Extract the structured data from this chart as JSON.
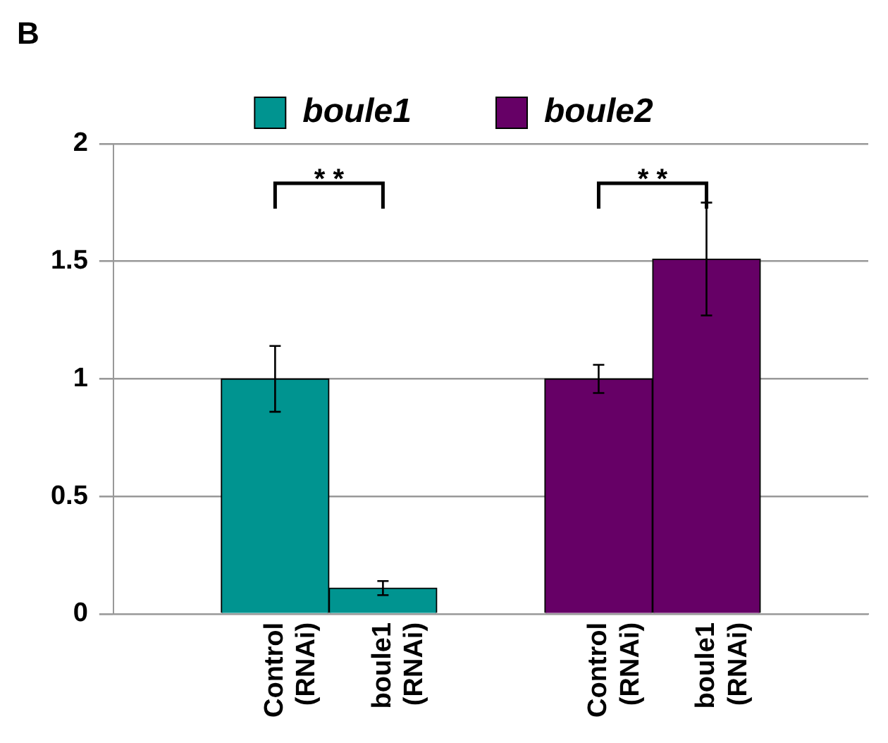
{
  "chart_data": {
    "type": "bar",
    "title": "B",
    "categories": [
      null,
      "Control (RNAi)",
      "boule1 (RNAi)",
      null,
      "Control (RNAi)",
      "boule1 (RNAi)",
      null
    ],
    "series": [
      {
        "name": "boule1",
        "color": "#009490",
        "values": [
          null,
          1,
          0.11,
          null,
          null,
          null,
          null
        ],
        "errors": [
          null,
          0.14,
          0.03,
          null,
          null,
          null,
          null
        ]
      },
      {
        "name": "boule2",
        "color": "#660066",
        "values": [
          null,
          null,
          null,
          null,
          1,
          1.51,
          null
        ],
        "errors": [
          null,
          null,
          null,
          null,
          0.06,
          0.24,
          null
        ]
      }
    ],
    "ylim": [
      0,
      2
    ],
    "yticks": [
      0,
      0.5,
      1,
      1.5,
      2
    ],
    "grid": "y",
    "legend": "top",
    "annotations": [
      "* *",
      "* *"
    ]
  }
}
